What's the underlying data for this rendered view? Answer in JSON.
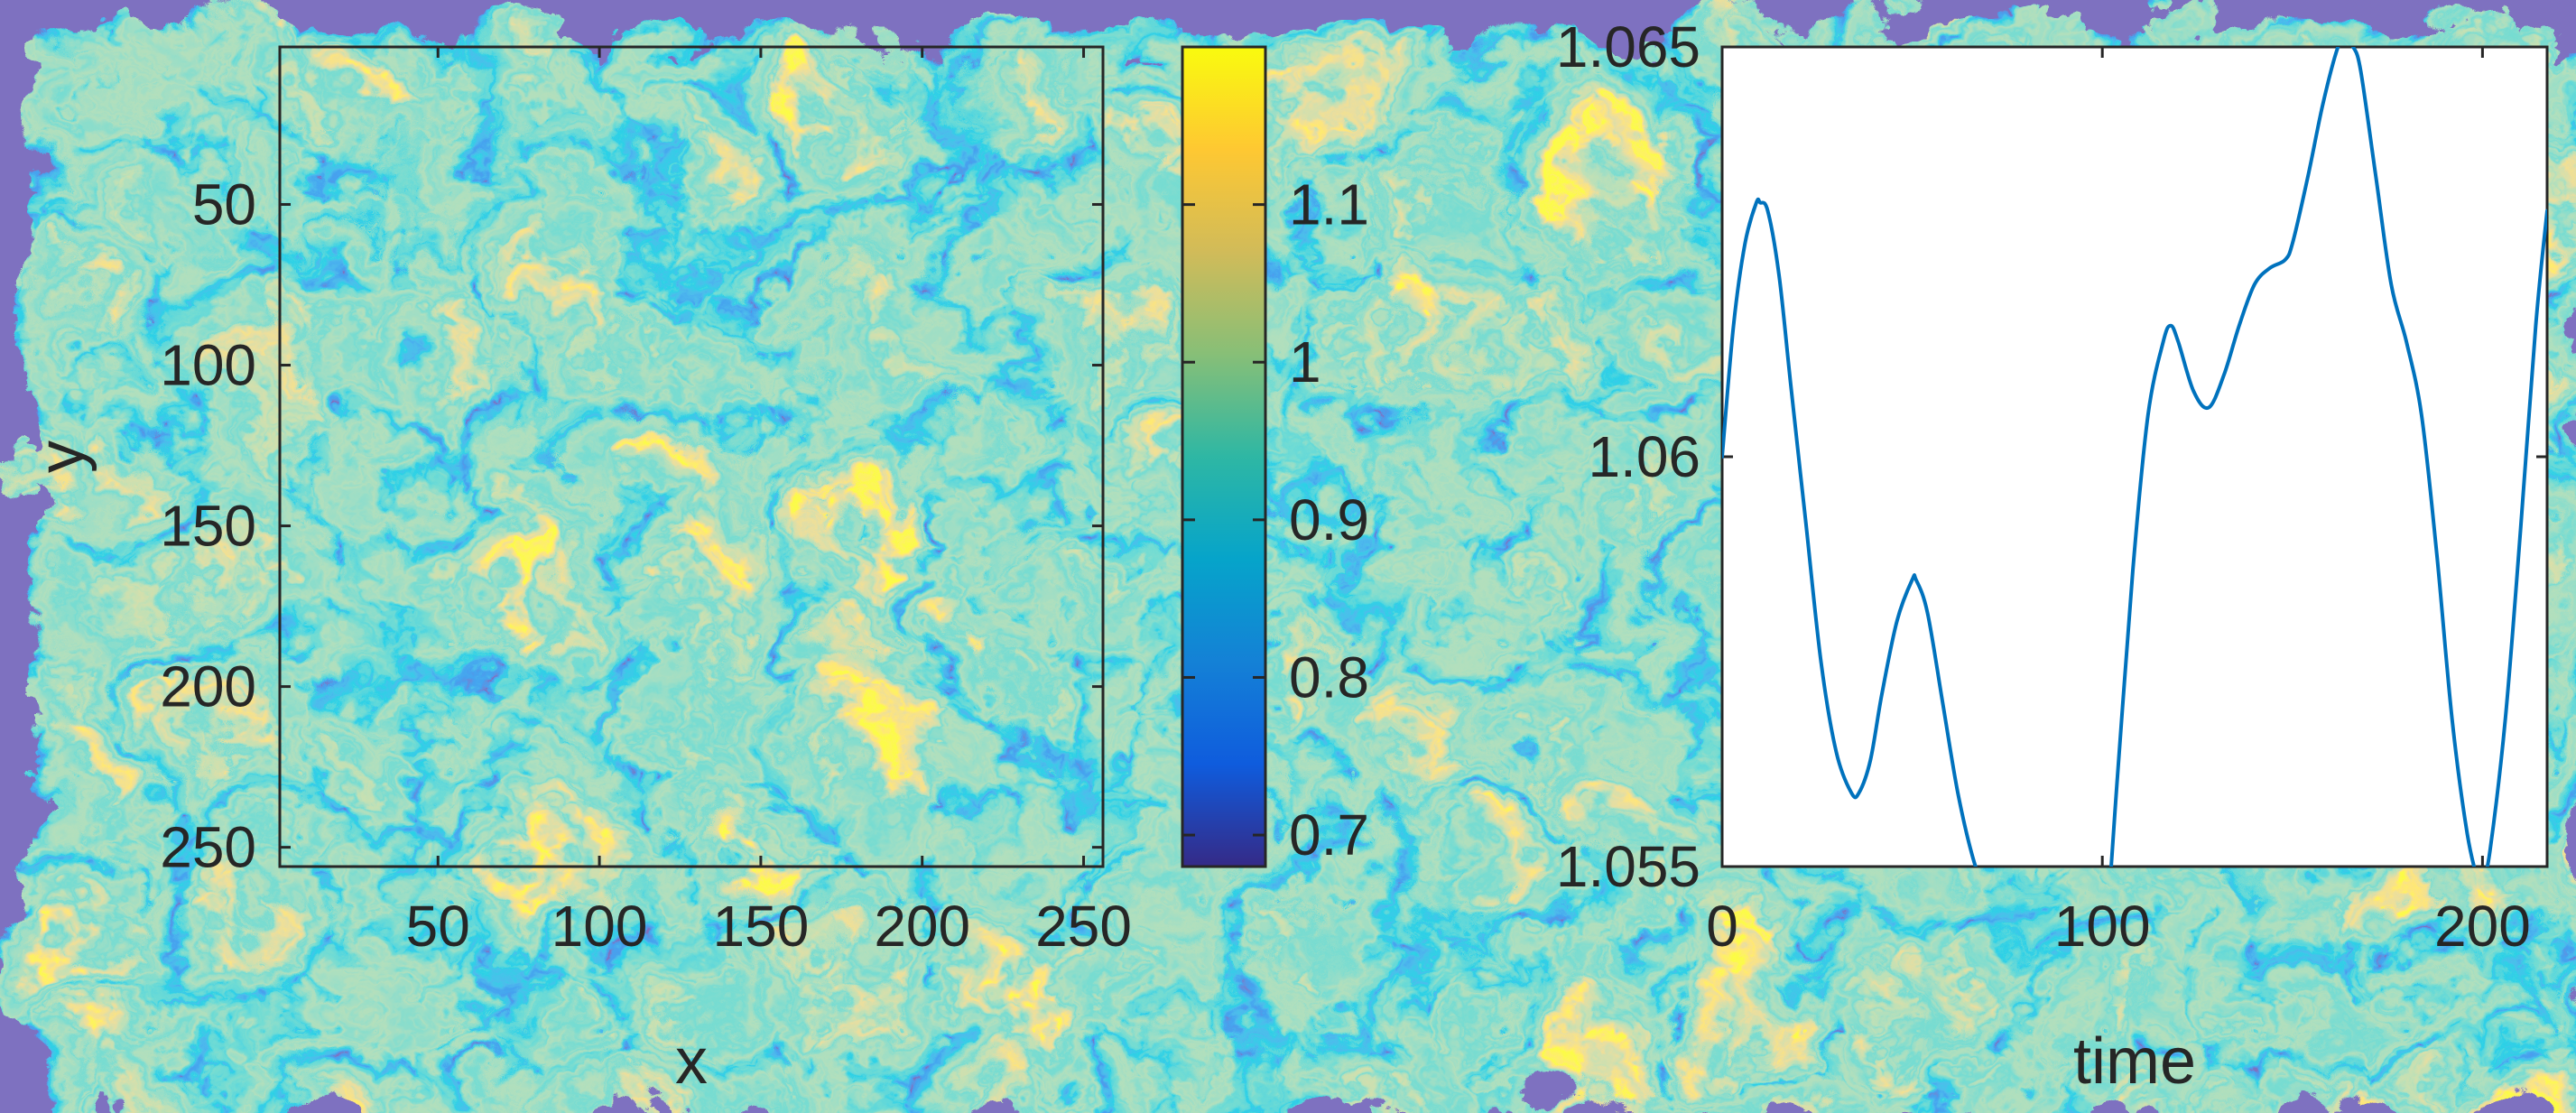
{
  "chart_data": [
    {
      "type": "heatmap",
      "title": "",
      "xlabel": "x",
      "ylabel": "y",
      "xlim": [
        1,
        256
      ],
      "ylim": [
        1,
        256
      ],
      "y_direction": "reversed",
      "x_ticks": [
        "50",
        "100",
        "150",
        "200",
        "250"
      ],
      "x_tick_values": [
        50,
        100,
        150,
        200,
        250
      ],
      "y_ticks": [
        "50",
        "100",
        "150",
        "200",
        "250"
      ],
      "y_tick_values": [
        50,
        100,
        150,
        200,
        250
      ],
      "colormap": "parula",
      "colormap_stops": [
        "#352a87",
        "#0f5cdd",
        "#1481d6",
        "#06a4ca",
        "#2eb7a4",
        "#87bf77",
        "#d1bb59",
        "#fec832",
        "#f9fb0e"
      ],
      "clim": [
        0.68,
        1.2
      ],
      "colorbar_ticks": [
        "0.7",
        "0.8",
        "0.9",
        "1",
        "1.1"
      ],
      "colorbar_tick_values": [
        0.7,
        0.8,
        0.9,
        1.0,
        1.1
      ],
      "field_description": "turbulent density field, values mostly 0.9 to 1.15 with filamentary vortex structures"
    },
    {
      "type": "line",
      "title": "",
      "xlabel": "time",
      "ylabel": "",
      "xlim": [
        0,
        217
      ],
      "ylim": [
        1.055,
        1.065
      ],
      "x_ticks": [
        "0",
        "100",
        "200"
      ],
      "x_tick_values": [
        0,
        100,
        200
      ],
      "y_ticks": [
        "1.055",
        "1.06",
        "1.065"
      ],
      "y_tick_values": [
        1.055,
        1.06,
        1.065
      ],
      "line_color": "#0072bd",
      "series": [
        {
          "x": [
            0,
            3,
            6,
            9,
            10,
            12,
            15,
            18,
            22,
            26,
            30,
            34,
            36,
            39,
            42,
            46,
            50,
            51,
            54,
            58,
            62,
            66,
            70,
            74,
            78,
            82,
            86,
            90,
            92,
            94,
            96,
            100,
            104,
            108,
            112,
            116,
            118,
            120,
            124,
            128,
            132,
            136,
            140,
            144,
            148,
            150,
            154,
            158,
            162,
            164,
            166,
            168,
            172,
            176,
            180,
            184,
            188,
            192,
            196,
            199,
            200,
            202,
            206,
            210,
            214,
            217
          ],
          "y": [
            1.06,
            1.0616,
            1.0626,
            1.0631,
            1.0631,
            1.063,
            1.0622,
            1.0609,
            1.0592,
            1.0575,
            1.0564,
            1.0559,
            1.0559,
            1.0563,
            1.0571,
            1.058,
            1.0585,
            1.0585,
            1.0581,
            1.057,
            1.0559,
            1.0551,
            1.0546,
            1.0543,
            1.0541,
            1.054,
            1.0535,
            1.0528,
            1.0525,
            1.0523,
            1.0524,
            1.0536,
            1.0561,
            1.0586,
            1.0605,
            1.0614,
            1.0616,
            1.0614,
            1.0608,
            1.0606,
            1.061,
            1.0616,
            1.0621,
            1.0623,
            1.0624,
            1.0626,
            1.0634,
            1.0643,
            1.065,
            1.0651,
            1.065,
            1.0647,
            1.0634,
            1.0621,
            1.0614,
            1.0605,
            1.0588,
            1.0568,
            1.0554,
            1.0548,
            1.0548,
            1.0552,
            1.0568,
            1.0591,
            1.0616,
            1.063
          ]
        }
      ]
    }
  ]
}
